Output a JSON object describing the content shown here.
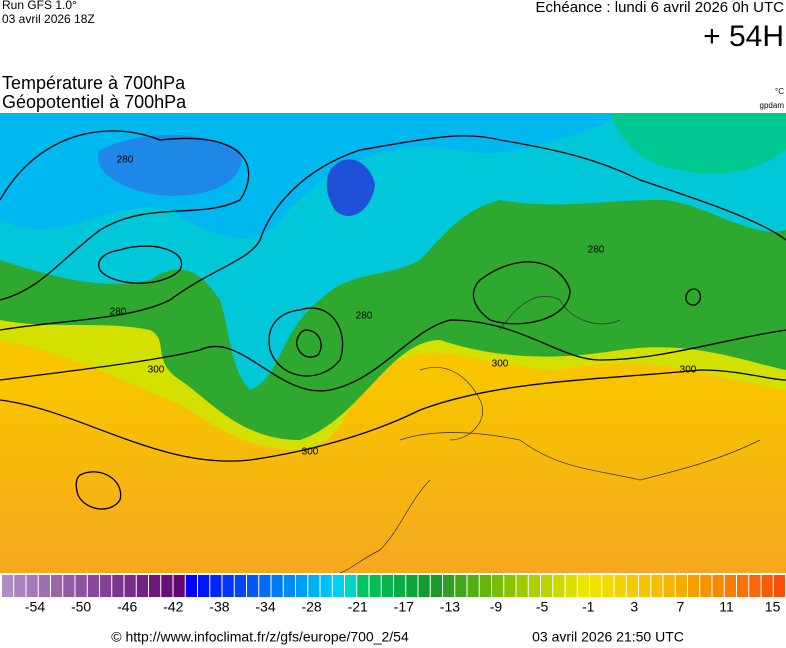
{
  "header": {
    "run": "Run GFS 1.0°",
    "run_date": "03 avril 2026 18Z",
    "echeance": "Echéance : lundi 6 avril 2026 0h UTC",
    "lead": "+ 54H"
  },
  "titles": {
    "line1": "Température à 700hPa",
    "line2": "Géopotentiel à 700hPa",
    "unit1": "°C",
    "unit2": "gpdam"
  },
  "map": {
    "contour_labels": [
      "280",
      "280",
      "280",
      "280",
      "300",
      "300",
      "300",
      "300"
    ]
  },
  "legend": {
    "labels": [
      -54,
      -50,
      -46,
      -42,
      -38,
      -34,
      -28,
      -21,
      -17,
      -13,
      -9,
      -5,
      -1,
      3,
      7,
      11,
      15
    ]
  },
  "footer": {
    "url": "© http://www.infoclimat.fr/z/gfs/europe/700_2/54",
    "timestamp": "03 avril 2026 21:50 UTC"
  }
}
